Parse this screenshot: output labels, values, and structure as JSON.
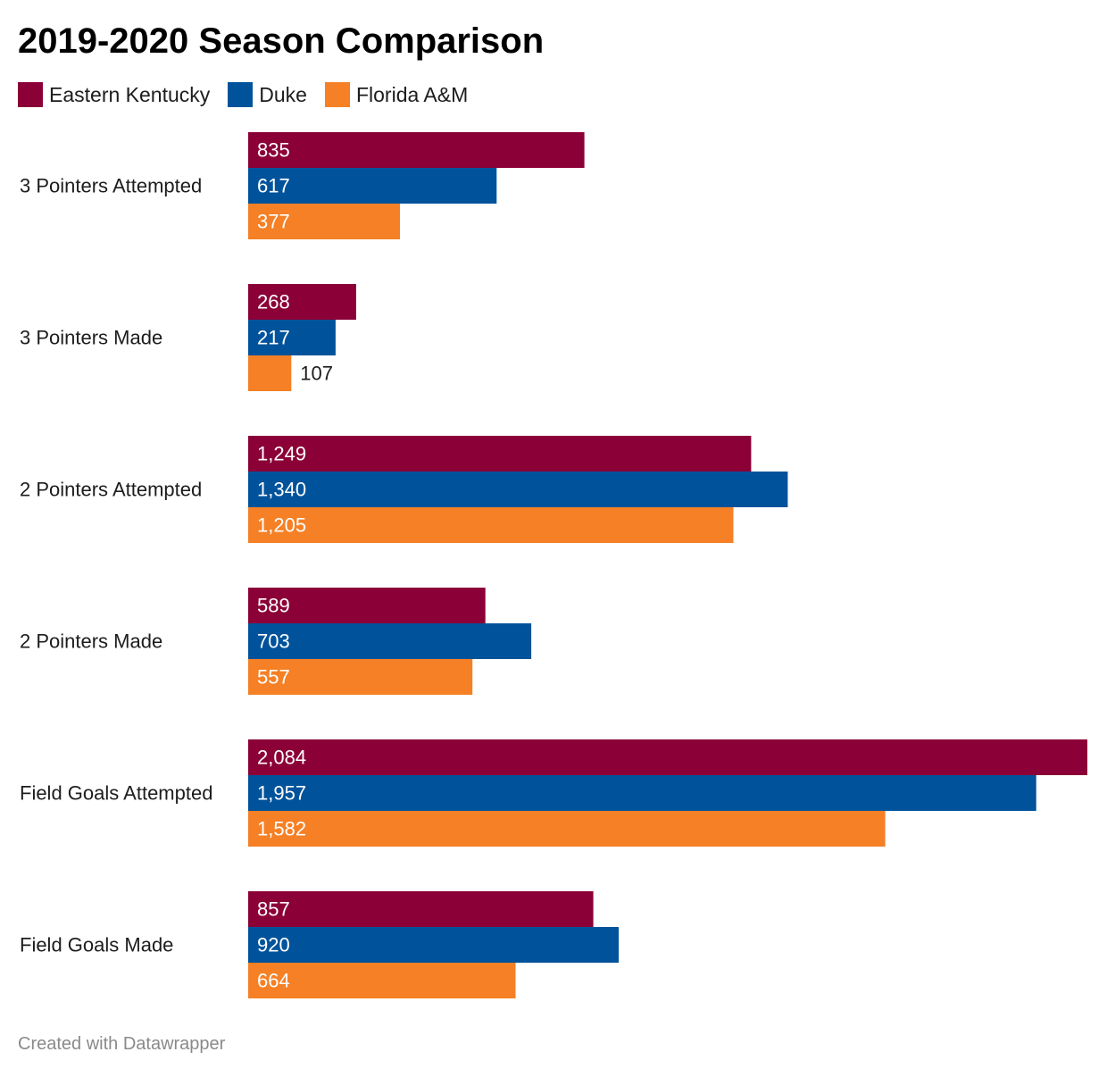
{
  "chart_data": {
    "type": "bar",
    "orientation": "horizontal",
    "title": "2019-2020 Season Comparison",
    "categories": [
      "3 Pointers Attempted",
      "3 Pointers Made",
      "2 Pointers Attempted",
      "2 Pointers Made",
      "Field Goals Attempted",
      "Field Goals Made"
    ],
    "series": [
      {
        "name": "Eastern Kentucky",
        "color": "#8b0037",
        "values": [
          835,
          268,
          1249,
          589,
          2084,
          857
        ],
        "labels": [
          "835",
          "268",
          "1,249",
          "589",
          "2,084",
          "857"
        ]
      },
      {
        "name": "Duke",
        "color": "#00539b",
        "values": [
          617,
          217,
          1340,
          703,
          1957,
          920
        ],
        "labels": [
          "617",
          "217",
          "1,340",
          "703",
          "1,957",
          "920"
        ]
      },
      {
        "name": "Florida A&M",
        "color": "#f58025",
        "values": [
          377,
          107,
          1205,
          557,
          1582,
          664
        ],
        "labels": [
          "377",
          "107",
          "1,205",
          "557",
          "1,582",
          "664"
        ]
      }
    ],
    "xlim": [
      0,
      2084
    ],
    "legend_position": "top-left",
    "grid": false,
    "value_labels": "inside-left"
  },
  "footer": {
    "credit": "Created with Datawrapper"
  }
}
